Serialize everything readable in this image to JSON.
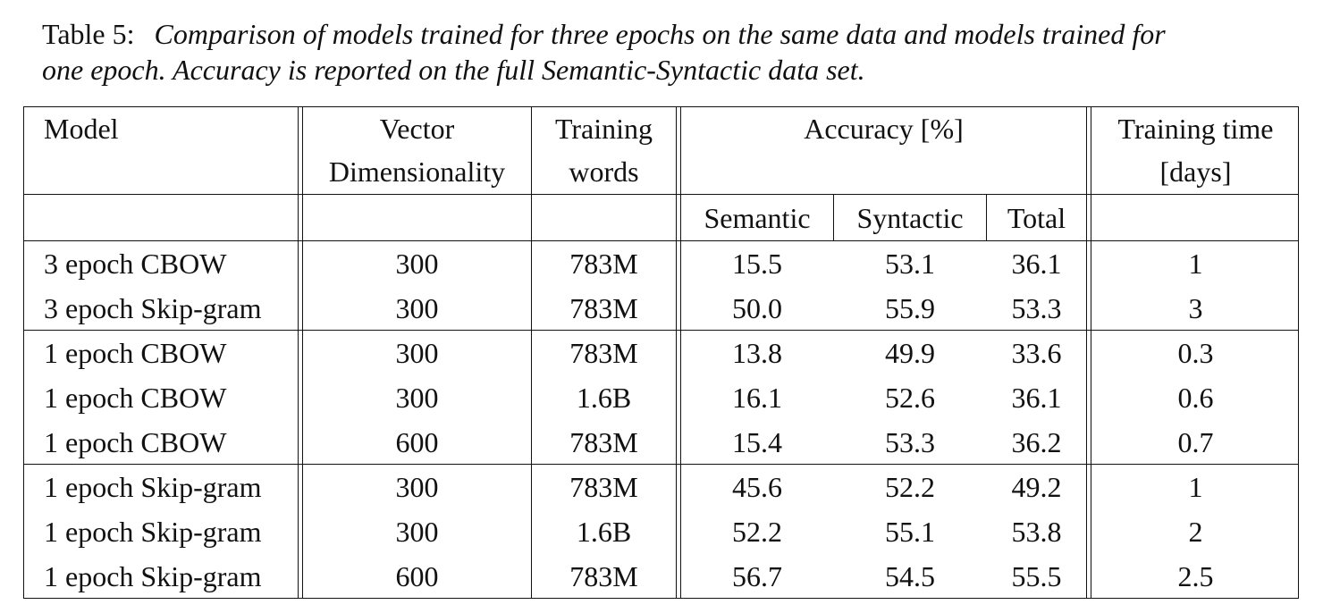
{
  "caption": {
    "label": "Table 5:",
    "text_line1": "Comparison of models trained for three epochs on the same data and models trained for",
    "text_line2": "one epoch. Accuracy is reported on the full Semantic-Syntactic data set."
  },
  "table": {
    "headers": {
      "model": "Model",
      "vector_line1": "Vector",
      "vector_line2": "Dimensionality",
      "training_line1": "Training",
      "training_line2": "words",
      "accuracy": "Accuracy [%]",
      "time_line1": "Training time",
      "time_line2": "[days]",
      "semantic": "Semantic",
      "syntactic": "Syntactic",
      "total": "Total"
    },
    "groups": [
      {
        "rows": [
          {
            "model": "3 epoch CBOW",
            "dim": "300",
            "words": "783M",
            "semantic": "15.5",
            "syntactic": "53.1",
            "total": "36.1",
            "time": "1"
          },
          {
            "model": "3 epoch Skip-gram",
            "dim": "300",
            "words": "783M",
            "semantic": "50.0",
            "syntactic": "55.9",
            "total": "53.3",
            "time": "3"
          }
        ]
      },
      {
        "rows": [
          {
            "model": "1 epoch CBOW",
            "dim": "300",
            "words": "783M",
            "semantic": "13.8",
            "syntactic": "49.9",
            "total": "33.6",
            "time": "0.3"
          },
          {
            "model": "1 epoch CBOW",
            "dim": "300",
            "words": "1.6B",
            "semantic": "16.1",
            "syntactic": "52.6",
            "total": "36.1",
            "time": "0.6"
          },
          {
            "model": "1 epoch CBOW",
            "dim": "600",
            "words": "783M",
            "semantic": "15.4",
            "syntactic": "53.3",
            "total": "36.2",
            "time": "0.7"
          }
        ]
      },
      {
        "rows": [
          {
            "model": "1 epoch Skip-gram",
            "dim": "300",
            "words": "783M",
            "semantic": "45.6",
            "syntactic": "52.2",
            "total": "49.2",
            "time": "1"
          },
          {
            "model": "1 epoch Skip-gram",
            "dim": "300",
            "words": "1.6B",
            "semantic": "52.2",
            "syntactic": "55.1",
            "total": "53.8",
            "time": "2"
          },
          {
            "model": "1 epoch Skip-gram",
            "dim": "600",
            "words": "783M",
            "semantic": "56.7",
            "syntactic": "54.5",
            "total": "55.5",
            "time": "2.5"
          }
        ]
      }
    ]
  }
}
